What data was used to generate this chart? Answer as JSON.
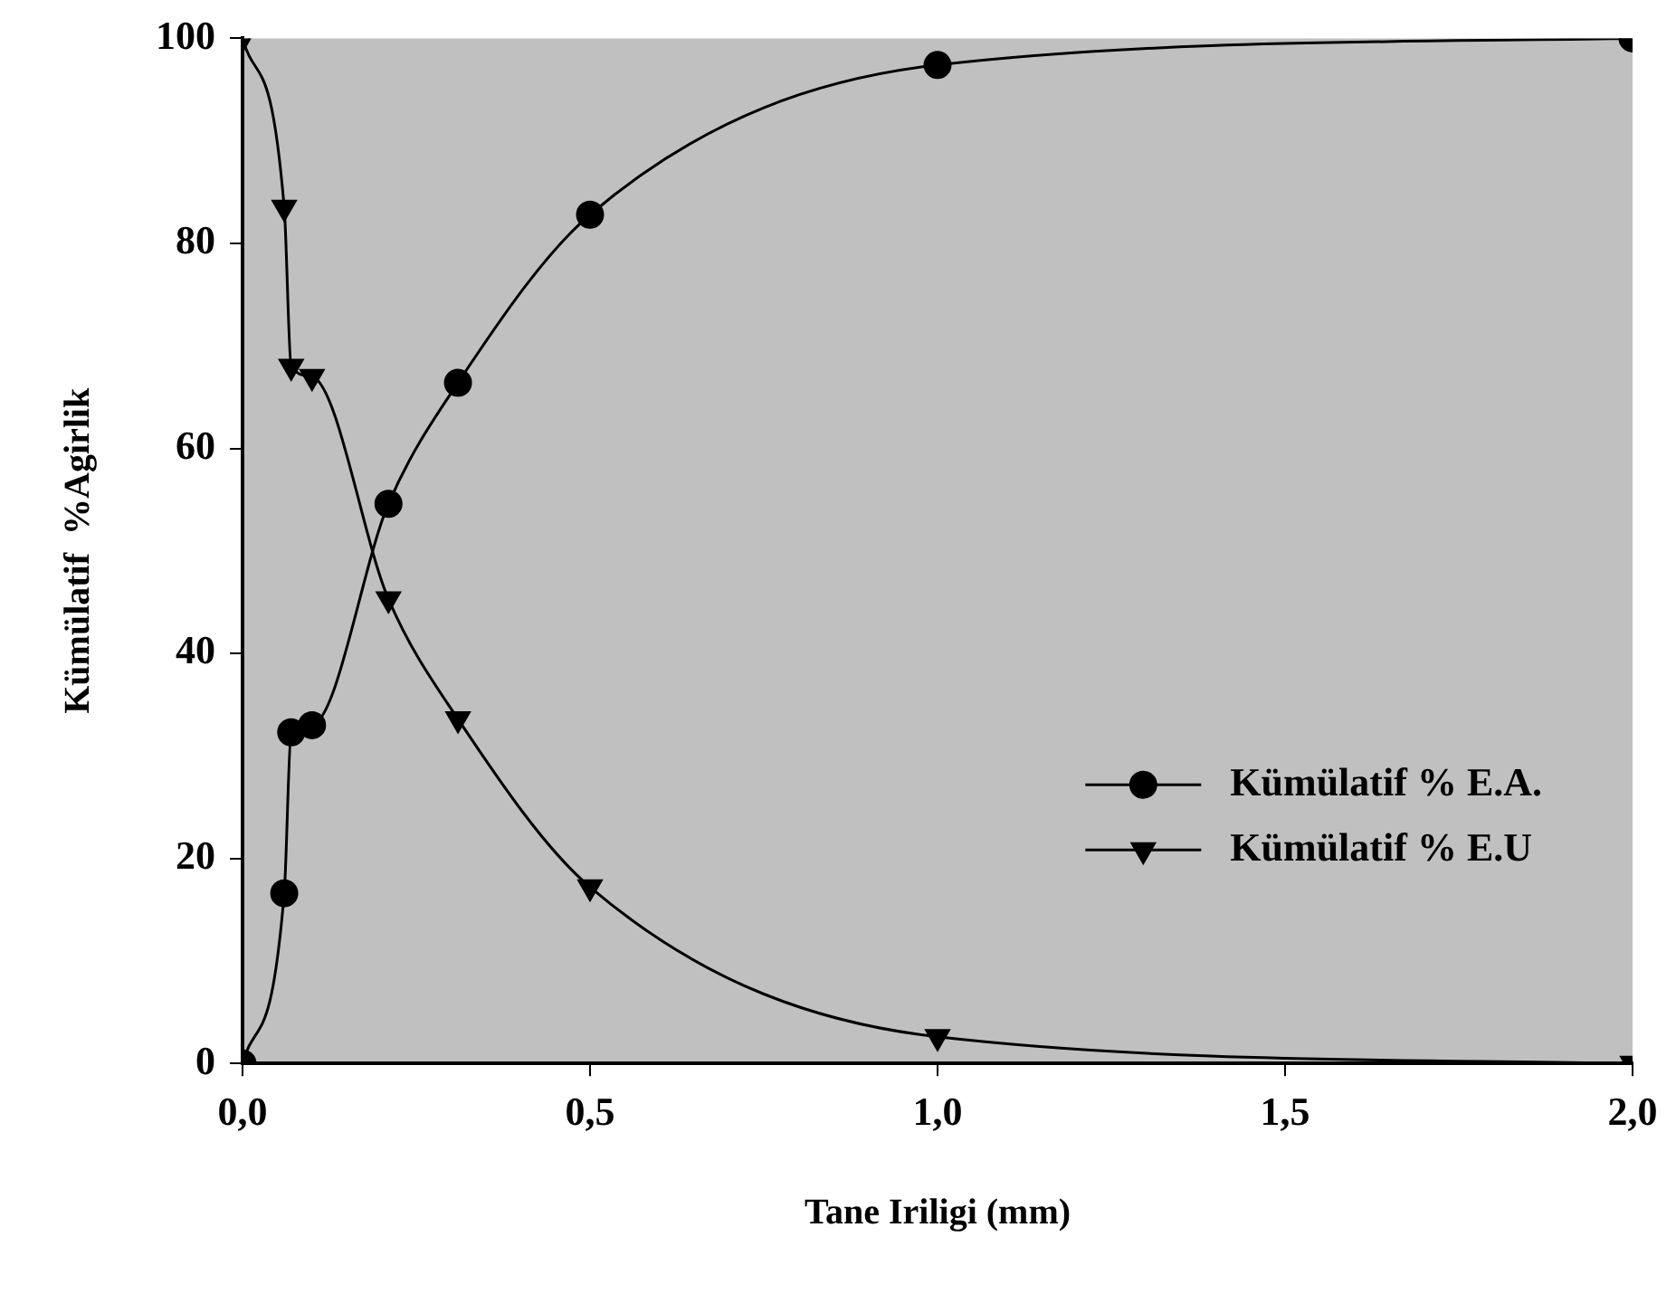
{
  "chart_data": {
    "type": "line",
    "xlabel": "Tane Iriligi (mm)",
    "ylabel": "Kümülatif  %Agirlik",
    "xlim": [
      0,
      2
    ],
    "ylim": [
      0,
      100
    ],
    "xticks": [
      {
        "value": 0,
        "label": "0,0"
      },
      {
        "value": 0.5,
        "label": "0,5"
      },
      {
        "value": 1,
        "label": "1,0"
      },
      {
        "value": 1.5,
        "label": "1,5"
      },
      {
        "value": 2,
        "label": "2,0"
      }
    ],
    "yticks": [
      0,
      20,
      40,
      60,
      80,
      100
    ],
    "grid": false,
    "legend": "bottom right",
    "series": [
      {
        "name": "Kümülatif % E.A.",
        "color": "#000000",
        "marker": "circle",
        "x": [
          0,
          0.06,
          0.07,
          0.1,
          0.21,
          0.31,
          0.5,
          1.0,
          2.0
        ],
        "values": [
          0,
          16.6,
          32.3,
          33,
          54.6,
          66.4,
          82.8,
          97.4,
          100
        ]
      },
      {
        "name": "Kümülatif % E.U",
        "color": "#000000",
        "marker": "triangle",
        "x": [
          0,
          0.06,
          0.07,
          0.1,
          0.21,
          0.31,
          0.5,
          1.0,
          2.0
        ],
        "values": [
          100,
          83.5,
          68,
          67,
          45.3,
          33.6,
          17.2,
          2.6,
          0
        ]
      }
    ]
  }
}
